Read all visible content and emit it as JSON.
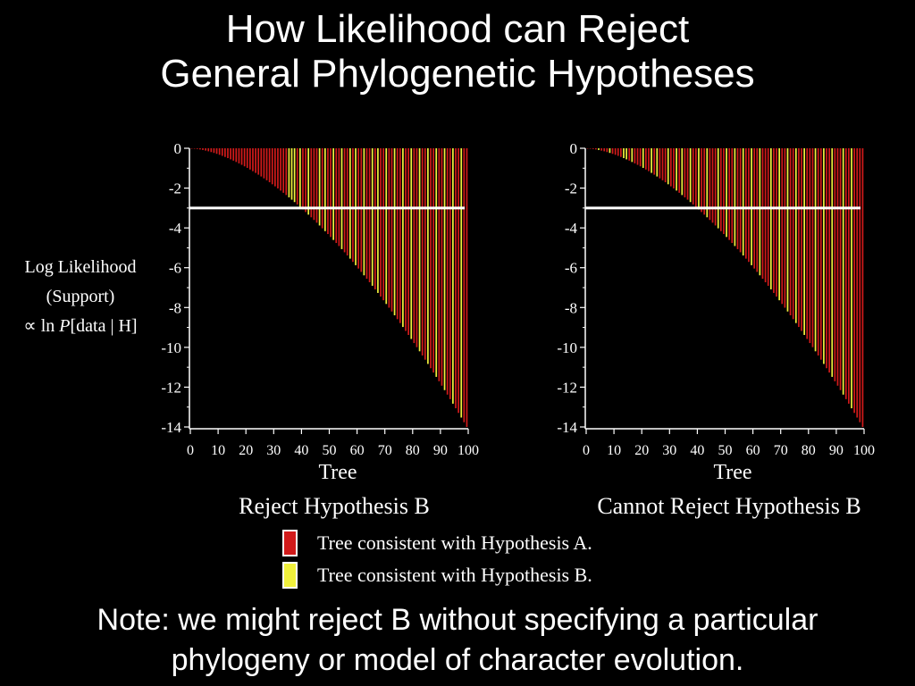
{
  "title": {
    "line1": "How Likelihood can Reject",
    "line2": "General Phylogenetic Hypotheses"
  },
  "ylabel": {
    "line1": "Log Likelihood",
    "line2": "(Support)",
    "line3_symbol": "∝ ln ",
    "line3_italic": "P",
    "line3_rest": "[data | H]"
  },
  "colors": {
    "background": "#000000",
    "hypothesis_a": "#d11a1a",
    "hypothesis_b": "#f0f03c",
    "threshold_line": "#ffffff",
    "axis": "#ffffff"
  },
  "legend": {
    "a_label": "Tree consistent with Hypothesis A.",
    "b_label": "Tree consistent with Hypothesis B."
  },
  "note": {
    "line1": "Note: we might reject B without specifying a particular",
    "line2": "phylogeny or model of character evolution."
  },
  "chart_data": [
    {
      "type": "bar",
      "xlabel": "Tree",
      "caption": "Reject Hypothesis B",
      "x": [
        1,
        100
      ],
      "x_ticks": [
        "0",
        "10",
        "20",
        "30",
        "40",
        "50",
        "60",
        "70",
        "80",
        "90",
        "100"
      ],
      "y_ticks": [
        "0",
        "-2",
        "-4",
        "-6",
        "-8",
        "-10",
        "-12",
        "-14"
      ],
      "xlim": [
        0,
        100
      ],
      "ylim": [
        -14,
        0
      ],
      "values_formula": "-14 * (tree / 100)^1.7",
      "threshold": -3,
      "series": [
        {
          "color_role": "hypothesis_a",
          "trees": "1-35, and every tree not listed under hypothesis_b"
        },
        {
          "color_role": "hypothesis_b",
          "trees": [
            36,
            37,
            38,
            40,
            43,
            47,
            49,
            52,
            55,
            58,
            60,
            63,
            66,
            68,
            71,
            74,
            77,
            80,
            83,
            86,
            89,
            92,
            95,
            98
          ]
        }
      ]
    },
    {
      "type": "bar",
      "xlabel": "Tree",
      "caption": "Cannot Reject Hypothesis B",
      "x": [
        1,
        100
      ],
      "x_ticks": [
        "0",
        "10",
        "20",
        "30",
        "40",
        "50",
        "60",
        "70",
        "80",
        "90",
        "100"
      ],
      "y_ticks": [
        "0",
        "-2",
        "-4",
        "-6",
        "-8",
        "-10",
        "-12",
        "-14"
      ],
      "xlim": [
        0,
        100
      ],
      "ylim": [
        -14,
        0
      ],
      "values_formula": "-14 * (tree / 100)^1.7",
      "threshold": -3,
      "series": [
        {
          "color_role": "hypothesis_a",
          "trees": "every tree not listed under hypothesis_b"
        },
        {
          "color_role": "hypothesis_b",
          "trees": [
            5,
            9,
            14,
            15,
            17,
            21,
            24,
            26,
            30,
            33,
            35,
            38,
            41,
            44,
            48,
            51,
            54,
            57,
            60,
            63,
            67,
            70,
            73,
            76,
            79,
            83,
            86,
            89,
            93,
            96
          ]
        }
      ]
    }
  ]
}
